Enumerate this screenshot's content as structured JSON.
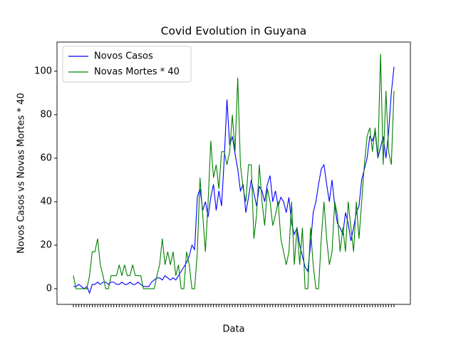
{
  "chart_data": {
    "type": "line",
    "title": "Covid Evolution in Guyana",
    "x_label": "Data",
    "y_label": "Novos Casos vs Novas Mortes * 40",
    "categories": [
      null,
      null,
      null,
      null,
      null,
      null,
      null,
      null,
      null,
      null,
      null,
      null,
      null,
      null,
      null,
      null,
      null,
      null,
      null,
      null,
      null,
      null,
      null,
      null,
      null,
      null,
      null,
      null,
      null,
      null,
      null,
      null,
      null,
      null,
      null,
      null,
      null,
      null,
      null,
      null,
      null,
      null,
      null,
      null,
      null,
      null,
      null,
      null,
      null,
      null,
      null,
      null,
      null,
      null,
      null,
      null,
      null,
      null,
      null,
      null,
      null,
      null,
      null,
      null,
      null,
      null,
      null,
      null,
      null,
      null,
      null,
      null,
      null,
      null,
      null,
      null,
      null,
      null,
      null,
      null,
      null,
      null,
      null,
      null,
      null,
      null,
      null,
      null,
      null,
      null,
      null,
      null,
      null,
      null,
      null,
      null,
      null,
      null,
      null,
      null,
      null,
      null,
      null,
      null,
      null,
      null,
      null,
      null,
      null,
      null,
      null,
      null,
      null,
      null,
      null,
      null,
      null,
      null,
      null,
      null
    ],
    "series": [
      {
        "name": "Novos Casos",
        "color": "#0000ff",
        "values": [
          1,
          1,
          2,
          1,
          0,
          1,
          -2,
          2,
          2,
          3,
          2,
          3,
          3,
          2,
          3,
          3,
          2,
          2,
          3,
          2,
          2,
          3,
          2,
          2,
          3,
          2,
          1,
          1,
          1,
          3,
          4,
          5,
          5,
          4,
          6,
          5,
          4,
          5,
          4,
          6,
          8,
          10,
          12,
          15,
          20,
          18,
          42,
          46,
          36,
          40,
          33,
          42,
          48,
          36,
          45,
          38,
          60,
          87,
          66,
          70,
          62,
          55,
          45,
          48,
          35,
          42,
          50,
          44,
          38,
          47,
          45,
          40,
          48,
          52,
          40,
          45,
          38,
          42,
          40,
          35,
          42,
          30,
          25,
          28,
          20,
          15,
          10,
          8,
          20,
          35,
          40,
          48,
          55,
          57,
          48,
          40,
          50,
          38,
          30,
          28,
          25,
          35,
          30,
          22,
          28,
          35,
          38,
          50,
          55,
          60,
          70,
          68,
          72,
          60,
          65,
          70,
          60,
          72,
          90,
          102
        ]
      },
      {
        "name": "Novas Mortes * 40",
        "color": "#008000",
        "values": [
          6,
          0,
          0,
          0,
          0,
          0,
          6,
          17,
          17,
          23,
          11,
          6,
          0,
          0,
          6,
          6,
          6,
          11,
          6,
          11,
          6,
          6,
          11,
          6,
          6,
          6,
          0,
          0,
          0,
          0,
          0,
          6,
          11,
          23,
          11,
          17,
          11,
          17,
          6,
          11,
          0,
          0,
          17,
          11,
          0,
          0,
          17,
          51,
          34,
          17,
          40,
          68,
          51,
          57,
          46,
          63,
          63,
          57,
          63,
          80,
          63,
          97,
          57,
          46,
          40,
          57,
          57,
          23,
          34,
          57,
          40,
          29,
          46,
          40,
          29,
          34,
          40,
          23,
          17,
          11,
          17,
          40,
          11,
          28,
          11,
          28,
          0,
          0,
          28,
          11,
          0,
          0,
          23,
          40,
          23,
          11,
          17,
          40,
          34,
          17,
          28,
          17,
          40,
          28,
          17,
          40,
          23,
          40,
          57,
          70,
          74,
          63,
          74,
          60,
          108,
          57,
          91,
          63,
          57,
          91
        ]
      }
    ],
    "ylim": [
      -7.2,
      113.4
    ],
    "yticks": [
      0,
      20,
      40,
      60,
      80,
      100
    ],
    "legend": "upper left"
  }
}
